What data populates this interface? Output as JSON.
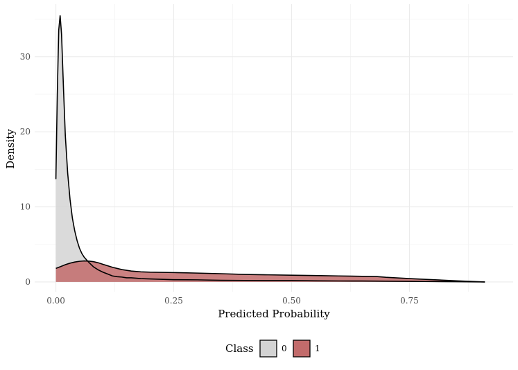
{
  "chart_data": {
    "type": "area",
    "xlabel": "Predicted Probability",
    "ylabel": "Density",
    "xlim": [
      -0.045,
      0.97
    ],
    "ylim": [
      -1.3,
      37
    ],
    "x_ticks": [
      0.0,
      0.25,
      0.5,
      0.75
    ],
    "x_tick_labels": [
      "0.00",
      "0.25",
      "0.50",
      "0.75"
    ],
    "y_ticks": [
      0,
      10,
      20,
      30
    ],
    "y_tick_labels": [
      "0",
      "10",
      "20",
      "30"
    ],
    "grid": true,
    "legend": {
      "title": "Class",
      "position": "bottom"
    },
    "series": [
      {
        "name": "0",
        "fill": "#d3d3d3",
        "points": [
          [
            0.0,
            13.7
          ],
          [
            0.003,
            25
          ],
          [
            0.006,
            33.5
          ],
          [
            0.009,
            35.5
          ],
          [
            0.012,
            33
          ],
          [
            0.016,
            26
          ],
          [
            0.02,
            19.5
          ],
          [
            0.025,
            14.5
          ],
          [
            0.03,
            11
          ],
          [
            0.035,
            8.5
          ],
          [
            0.04,
            6.8
          ],
          [
            0.045,
            5.5
          ],
          [
            0.05,
            4.5
          ],
          [
            0.055,
            3.8
          ],
          [
            0.06,
            3.3
          ],
          [
            0.07,
            2.6
          ],
          [
            0.08,
            2.0
          ],
          [
            0.09,
            1.6
          ],
          [
            0.1,
            1.3
          ],
          [
            0.11,
            1.05
          ],
          [
            0.12,
            0.8
          ],
          [
            0.13,
            0.7
          ],
          [
            0.14,
            0.65
          ],
          [
            0.15,
            0.55
          ],
          [
            0.16,
            0.55
          ],
          [
            0.18,
            0.45
          ],
          [
            0.2,
            0.4
          ],
          [
            0.25,
            0.3
          ],
          [
            0.3,
            0.28
          ],
          [
            0.35,
            0.22
          ],
          [
            0.4,
            0.2
          ],
          [
            0.45,
            0.18
          ],
          [
            0.5,
            0.18
          ],
          [
            0.55,
            0.15
          ],
          [
            0.6,
            0.13
          ],
          [
            0.65,
            0.12
          ],
          [
            0.7,
            0.1
          ],
          [
            0.75,
            0.08
          ],
          [
            0.8,
            0.05
          ],
          [
            0.85,
            0.03
          ],
          [
            0.91,
            0.0
          ]
        ]
      },
      {
        "name": "1",
        "fill": "#c26b6b",
        "points": [
          [
            0.0,
            1.8
          ],
          [
            0.01,
            2.05
          ],
          [
            0.02,
            2.3
          ],
          [
            0.03,
            2.5
          ],
          [
            0.04,
            2.65
          ],
          [
            0.05,
            2.75
          ],
          [
            0.06,
            2.8
          ],
          [
            0.07,
            2.78
          ],
          [
            0.08,
            2.7
          ],
          [
            0.09,
            2.55
          ],
          [
            0.1,
            2.35
          ],
          [
            0.12,
            1.95
          ],
          [
            0.14,
            1.65
          ],
          [
            0.16,
            1.45
          ],
          [
            0.18,
            1.35
          ],
          [
            0.2,
            1.3
          ],
          [
            0.25,
            1.25
          ],
          [
            0.3,
            1.18
          ],
          [
            0.35,
            1.1
          ],
          [
            0.4,
            1.0
          ],
          [
            0.45,
            0.95
          ],
          [
            0.5,
            0.9
          ],
          [
            0.55,
            0.85
          ],
          [
            0.6,
            0.8
          ],
          [
            0.65,
            0.75
          ],
          [
            0.68,
            0.72
          ],
          [
            0.7,
            0.62
          ],
          [
            0.75,
            0.45
          ],
          [
            0.8,
            0.3
          ],
          [
            0.85,
            0.15
          ],
          [
            0.91,
            0.0
          ]
        ]
      }
    ]
  }
}
